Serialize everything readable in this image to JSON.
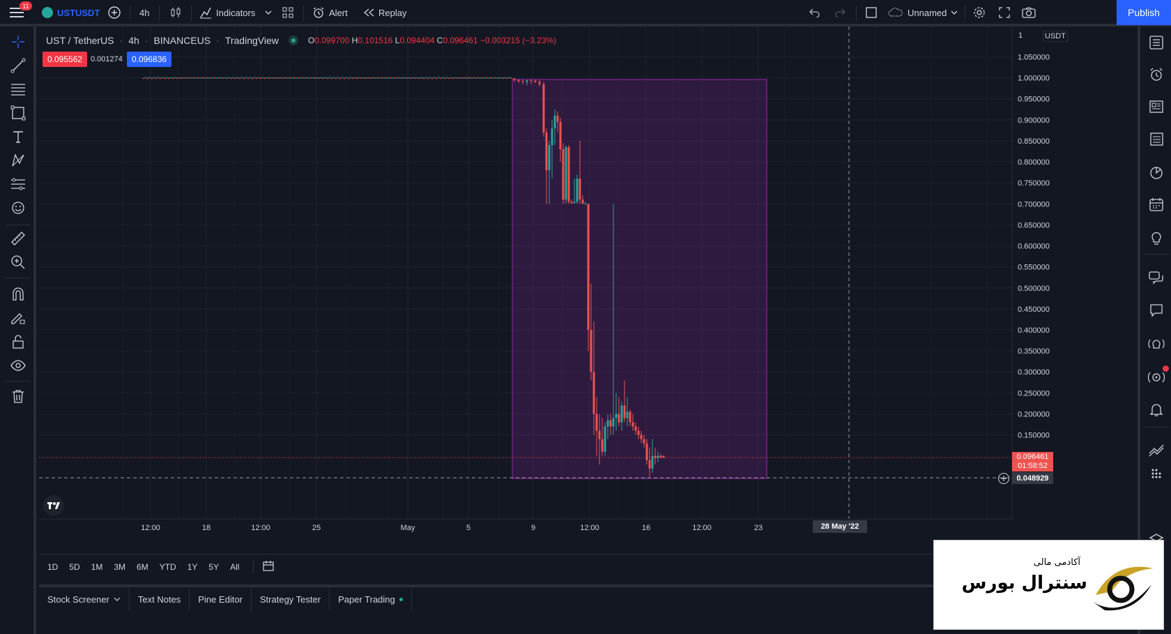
{
  "topbar": {
    "notif_count": "11",
    "symbol": "USTUSDT",
    "interval": "4h",
    "indicators_label": "Indicators",
    "alert_label": "Alert",
    "replay_label": "Replay",
    "layout_name": "Unnamed",
    "publish_label": "Publish"
  },
  "legend": {
    "pair": "UST / TetherUS",
    "interval": "4h",
    "exchange": "BINANCEUS",
    "source": "TradingView",
    "o_label": "O",
    "o": "0.099700",
    "h_label": "H",
    "h": "0.101516",
    "l_label": "L",
    "l": "0.094404",
    "c_label": "C",
    "c": "0.096461",
    "change": "−0.003215 (−3.23%)",
    "bid": "0.095562",
    "spread": "0.001274",
    "ask": "0.096836"
  },
  "price_axis": {
    "currency": "USDT",
    "scale_mode": "1",
    "current_price": "0.096461",
    "countdown": "01:58:52",
    "crosshair_price": "0.048929",
    "ticks": [
      "1.050000",
      "1.000000",
      "0.950000",
      "0.900000",
      "0.850000",
      "0.800000",
      "0.750000",
      "0.700000",
      "0.650000",
      "0.600000",
      "0.550000",
      "0.500000",
      "0.450000",
      "0.400000",
      "0.350000",
      "0.300000",
      "0.250000",
      "0.200000",
      "0.150000"
    ]
  },
  "time_axis": {
    "ticks": [
      "12:00",
      "18",
      "12:00",
      "25",
      "May",
      "5",
      "9",
      "12:00",
      "16",
      "12:00",
      "23"
    ],
    "crosshair_date": "28 May '22"
  },
  "ranges": [
    "1D",
    "5D",
    "1M",
    "3M",
    "6M",
    "YTD",
    "1Y",
    "5Y",
    "All"
  ],
  "bottom_tabs": [
    "Stock Screener",
    "Text Notes",
    "Pine Editor",
    "Strategy Tester",
    "Paper Trading"
  ],
  "watermark": {
    "line1": "آکادمی مالی",
    "line2": "سنترال بورس"
  },
  "colors": {
    "background": "#131722",
    "up": "#26a69a",
    "down": "#ef5350",
    "accent": "#2962ff",
    "rect_fill": "#9c27b0"
  }
}
